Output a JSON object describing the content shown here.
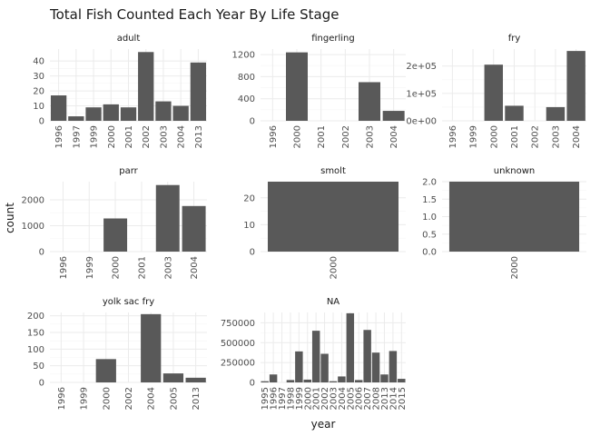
{
  "chart_data": {
    "type": "bar",
    "title": "Total Fish Counted Each Year By Life Stage",
    "xlabel": "year",
    "ylabel": "count",
    "bar_color": "#595959",
    "grid": true,
    "panels": [
      {
        "name": "adult",
        "categories": [
          "1996",
          "1997",
          "1999",
          "2000",
          "2001",
          "2002",
          "2003",
          "2004",
          "2013"
        ],
        "values": [
          17,
          3,
          9,
          11,
          9,
          46,
          13,
          10,
          39
        ],
        "ylim": [
          0,
          48
        ],
        "yticks": [
          0,
          10,
          20,
          30,
          40
        ],
        "ytick_labels": [
          "0",
          "10",
          "20",
          "30",
          "40"
        ]
      },
      {
        "name": "fingerling",
        "categories": [
          "1996",
          "2000",
          "2001",
          "2002",
          "2003",
          "2004"
        ],
        "values": [
          0,
          1240,
          0,
          0,
          700,
          180
        ],
        "ylim": [
          0,
          1300
        ],
        "yticks": [
          0,
          400,
          800,
          1200
        ],
        "ytick_labels": [
          "0",
          "400",
          "800",
          "1200"
        ]
      },
      {
        "name": "fry",
        "categories": [
          "1996",
          "1999",
          "2000",
          "2001",
          "2002",
          "2003",
          "2004"
        ],
        "values": [
          0,
          0,
          205000,
          55000,
          0,
          50000,
          255000
        ],
        "ylim": [
          0,
          262000
        ],
        "yticks": [
          0,
          100000,
          200000
        ],
        "ytick_labels": [
          "0e+00",
          "1e+05",
          "2e+05"
        ]
      },
      {
        "name": "parr",
        "categories": [
          "1996",
          "1999",
          "2000",
          "2001",
          "2003",
          "2004"
        ],
        "values": [
          0,
          0,
          1280,
          0,
          2570,
          1760
        ],
        "ylim": [
          0,
          2700
        ],
        "yticks": [
          0,
          1000,
          2000
        ],
        "ytick_labels": [
          "0",
          "1000",
          "2000"
        ]
      },
      {
        "name": "smolt",
        "categories": [
          "2000"
        ],
        "values": [
          26
        ],
        "ylim": [
          0,
          26
        ],
        "yticks": [
          0,
          10,
          20
        ],
        "ytick_labels": [
          "0",
          "10",
          "20"
        ]
      },
      {
        "name": "unknown",
        "categories": [
          "2000"
        ],
        "values": [
          2
        ],
        "ylim": [
          0,
          2
        ],
        "yticks": [
          0,
          0.5,
          1,
          1.5,
          2
        ],
        "ytick_labels": [
          "0.0",
          "0.5",
          "1.0",
          "1.5",
          "2.0"
        ]
      },
      {
        "name": "yolk sac fry",
        "categories": [
          "1996",
          "1999",
          "2000",
          "2002",
          "2004",
          "2005",
          "2013"
        ],
        "values": [
          0,
          0,
          70,
          0,
          205,
          27,
          14
        ],
        "ylim": [
          0,
          210
        ],
        "yticks": [
          0,
          50,
          100,
          150,
          200
        ],
        "ytick_labels": [
          "0",
          "50",
          "100",
          "150",
          "200"
        ]
      },
      {
        "name": "NA",
        "categories": [
          "1995",
          "1996",
          "1997",
          "1998",
          "1999",
          "2000",
          "2001",
          "2002",
          "2003",
          "2004",
          "2005",
          "2006",
          "2007",
          "2008",
          "2013",
          "2014",
          "2015"
        ],
        "values": [
          15000,
          100000,
          0,
          30000,
          390000,
          35000,
          650000,
          360000,
          15000,
          75000,
          870000,
          30000,
          660000,
          375000,
          100000,
          395000,
          45000
        ],
        "ylim": [
          0,
          880000
        ],
        "yticks": [
          0,
          250000,
          500000,
          750000
        ],
        "ytick_labels": [
          "0",
          "250000",
          "500000",
          "750000"
        ]
      }
    ]
  }
}
